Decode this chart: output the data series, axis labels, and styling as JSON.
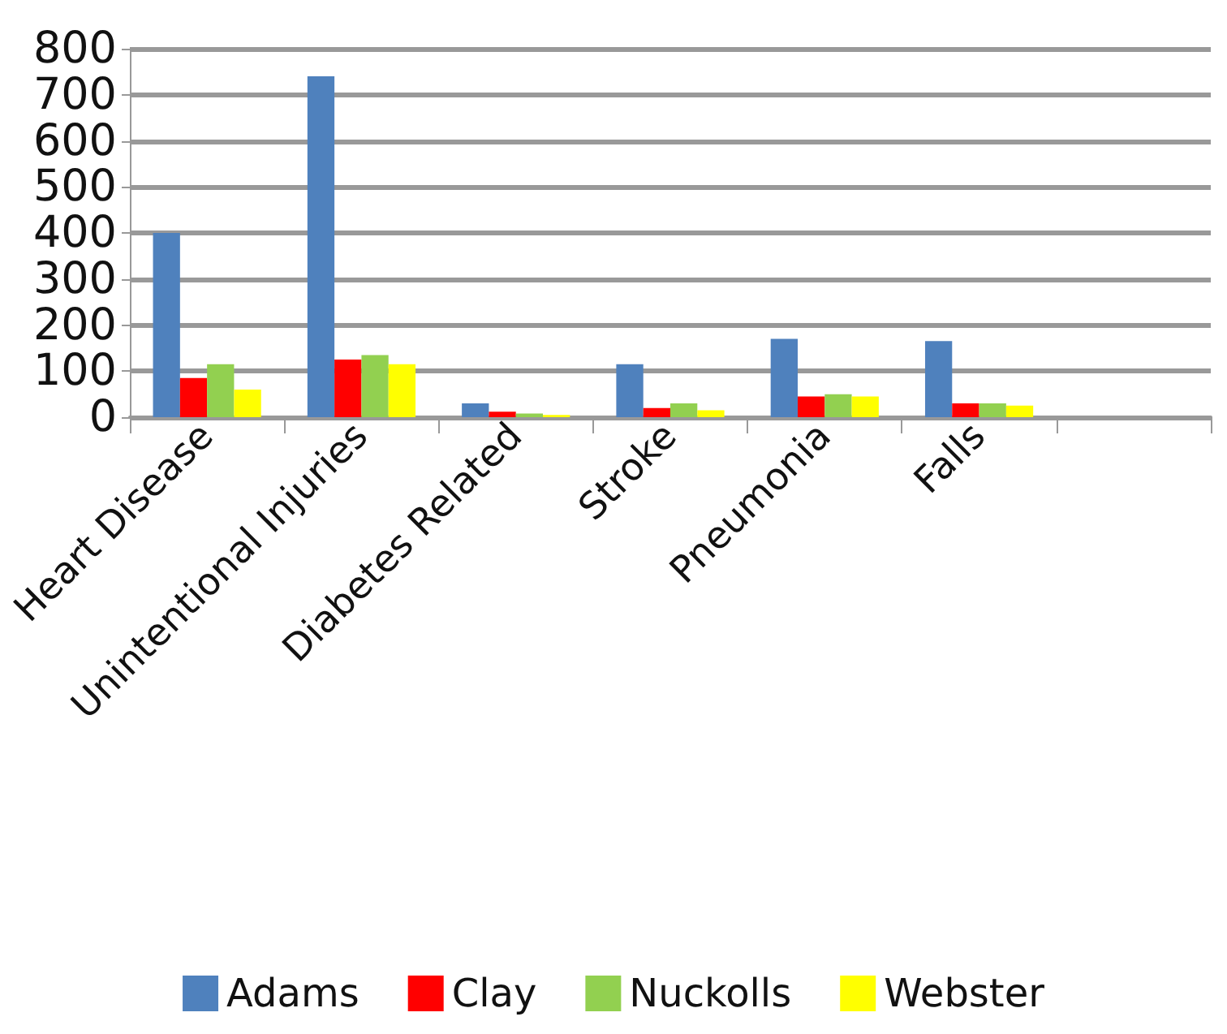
{
  "chart_data": {
    "type": "bar",
    "categories": [
      "Heart Disease",
      "Unintentional Injuries",
      "Diabetes Related",
      "Stroke",
      "Pneumonia",
      "Falls",
      null
    ],
    "series": [
      {
        "name": "Adams",
        "color": "#4f81bd",
        "values": [
          400,
          740,
          30,
          115,
          170,
          165,
          null
        ]
      },
      {
        "name": "Clay",
        "color": "#ff0000",
        "values": [
          85,
          125,
          12,
          20,
          45,
          30,
          null
        ]
      },
      {
        "name": "Nuckolls",
        "color": "#92d050",
        "values": [
          115,
          135,
          8,
          30,
          50,
          30,
          null
        ]
      },
      {
        "name": "Webster",
        "color": "#ffff00",
        "values": [
          60,
          115,
          5,
          15,
          45,
          25,
          null
        ]
      }
    ],
    "ylim": [
      0,
      800
    ],
    "yticks": [
      0,
      100,
      200,
      300,
      400,
      500,
      600,
      700,
      800
    ],
    "grid": "y",
    "legend": "bottom"
  }
}
